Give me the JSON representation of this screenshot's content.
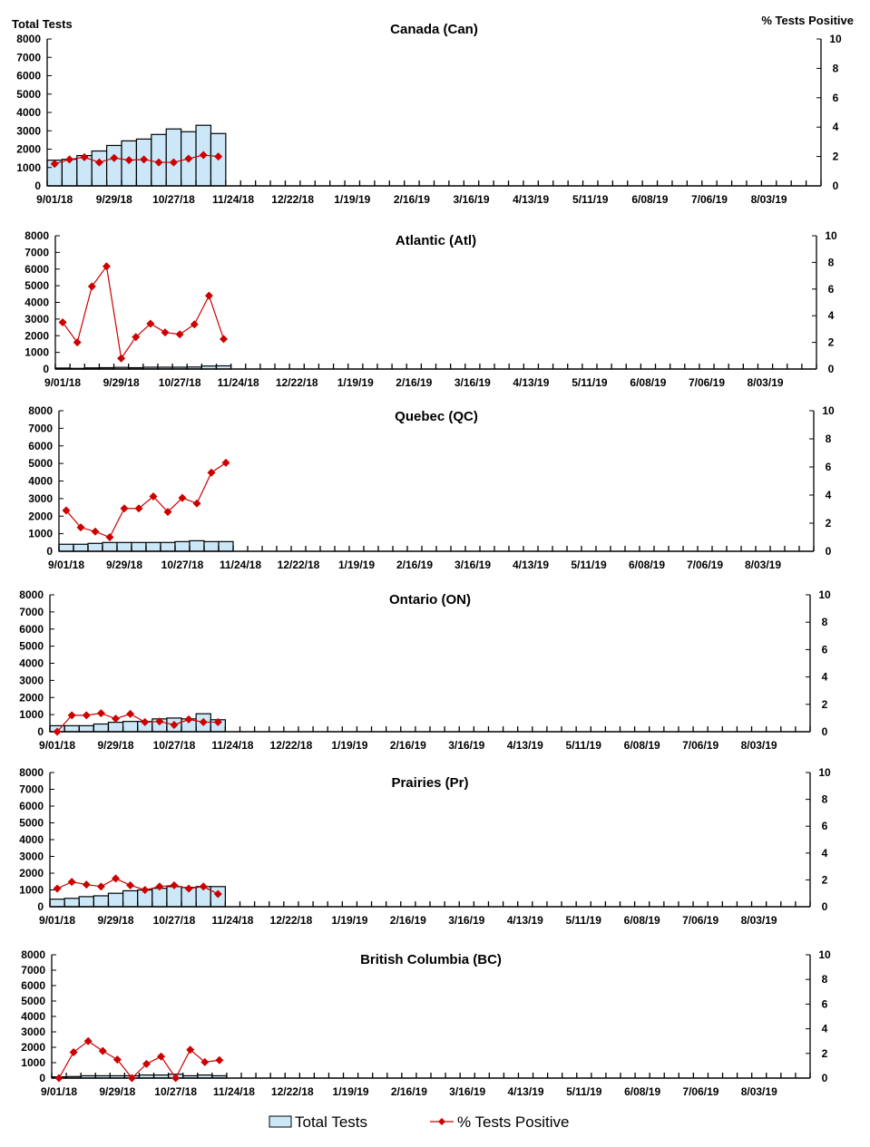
{
  "left_axis_label": "Total Tests",
  "right_axis_label": "% Tests Positive",
  "legend": [
    {
      "label": "Total Tests",
      "type": "bar"
    },
    {
      "label": "% Tests Positive",
      "type": "line-diamond"
    }
  ],
  "colors": {
    "bar_fill": "#cce8f8",
    "bar_stroke": "#000000",
    "line": "#cc0000",
    "axis": "#000000"
  },
  "chart_data": [
    {
      "type": "bar+line",
      "title": "Canada (Can)",
      "y_left_lim": [
        0,
        8000
      ],
      "y_left_ticks": [
        0,
        1000,
        2000,
        3000,
        4000,
        5000,
        6000,
        7000,
        8000
      ],
      "y_right_lim": [
        0,
        10
      ],
      "y_right_ticks": [
        0,
        2,
        4,
        6,
        8,
        10
      ],
      "total_tests": [
        1400,
        1450,
        1650,
        1900,
        2200,
        2450,
        2550,
        2800,
        3100,
        2950,
        3300,
        2850
      ],
      "pct_positive": [
        1.5,
        1.8,
        1.95,
        1.6,
        1.9,
        1.75,
        1.8,
        1.6,
        1.6,
        1.85,
        2.1,
        2.0
      ]
    },
    {
      "type": "bar+line",
      "title": "Atlantic (Atl)",
      "y_left_lim": [
        0,
        8000
      ],
      "y_left_ticks": [
        0,
        1000,
        2000,
        3000,
        4000,
        5000,
        6000,
        7000,
        8000
      ],
      "y_right_lim": [
        0,
        10
      ],
      "y_right_ticks": [
        0,
        2,
        4,
        6,
        8,
        10
      ],
      "total_tests": [
        60,
        40,
        70,
        80,
        100,
        80,
        110,
        110,
        110,
        120,
        180,
        190
      ],
      "pct_positive": [
        3.5,
        2.0,
        6.2,
        7.7,
        0.8,
        2.4,
        3.4,
        2.75,
        2.6,
        3.35,
        5.5,
        2.25
      ]
    },
    {
      "type": "bar+line",
      "title": "Quebec (QC)",
      "y_left_lim": [
        0,
        8000
      ],
      "y_left_ticks": [
        0,
        1000,
        2000,
        3000,
        4000,
        5000,
        6000,
        7000,
        8000
      ],
      "y_right_lim": [
        0,
        10
      ],
      "y_right_ticks": [
        0,
        2,
        4,
        6,
        8,
        10
      ],
      "total_tests": [
        400,
        400,
        450,
        500,
        500,
        500,
        500,
        500,
        550,
        600,
        550,
        550
      ],
      "pct_positive": [
        2.9,
        1.7,
        1.4,
        1.0,
        3.05,
        3.05,
        3.9,
        2.8,
        3.8,
        3.4,
        5.6,
        6.3
      ]
    },
    {
      "type": "bar+line",
      "title": "Ontario (ON)",
      "y_left_lim": [
        0,
        8000
      ],
      "y_left_ticks": [
        0,
        1000,
        2000,
        3000,
        4000,
        5000,
        6000,
        7000,
        8000
      ],
      "y_right_lim": [
        0,
        10
      ],
      "y_right_ticks": [
        0,
        2,
        4,
        6,
        8,
        10
      ],
      "total_tests": [
        350,
        350,
        350,
        450,
        550,
        600,
        600,
        750,
        800,
        750,
        1050,
        700
      ],
      "pct_positive": [
        0,
        1.2,
        1.2,
        1.35,
        0.95,
        1.3,
        0.7,
        0.75,
        0.5,
        0.9,
        0.7,
        0.7
      ]
    },
    {
      "type": "bar+line",
      "title": "Prairies (Pr)",
      "y_left_lim": [
        0,
        8000
      ],
      "y_left_ticks": [
        0,
        1000,
        2000,
        3000,
        4000,
        5000,
        6000,
        7000,
        8000
      ],
      "y_right_lim": [
        0,
        10
      ],
      "y_right_ticks": [
        0,
        2,
        4,
        6,
        8,
        10
      ],
      "total_tests": [
        450,
        500,
        600,
        650,
        800,
        950,
        1000,
        1100,
        1200,
        1150,
        1200,
        1200
      ],
      "pct_positive": [
        1.35,
        1.85,
        1.65,
        1.5,
        2.1,
        1.6,
        1.25,
        1.5,
        1.6,
        1.35,
        1.5,
        0.95
      ]
    },
    {
      "type": "bar+line",
      "title": "British Columbia (BC)",
      "y_left_lim": [
        0,
        8000
      ],
      "y_left_ticks": [
        0,
        1000,
        2000,
        3000,
        4000,
        5000,
        6000,
        7000,
        8000
      ],
      "y_right_lim": [
        0,
        10
      ],
      "y_right_ticks": [
        0,
        2,
        4,
        6,
        8,
        10
      ],
      "total_tests": [
        80,
        100,
        150,
        150,
        150,
        150,
        200,
        200,
        250,
        150,
        200,
        150
      ],
      "pct_positive": [
        0,
        2.1,
        3.0,
        2.2,
        1.5,
        0,
        1.15,
        1.75,
        0,
        2.3,
        1.3,
        1.45
      ]
    }
  ],
  "x_axis": {
    "weeks": 52,
    "tick_labels": [
      "9/01/18",
      "9/29/18",
      "10/27/18",
      "11/24/18",
      "12/22/18",
      "1/19/19",
      "2/16/19",
      "3/16/19",
      "4/13/19",
      "5/11/19",
      "6/08/19",
      "7/06/19",
      "8/03/19"
    ],
    "label_every_weeks": 4
  }
}
